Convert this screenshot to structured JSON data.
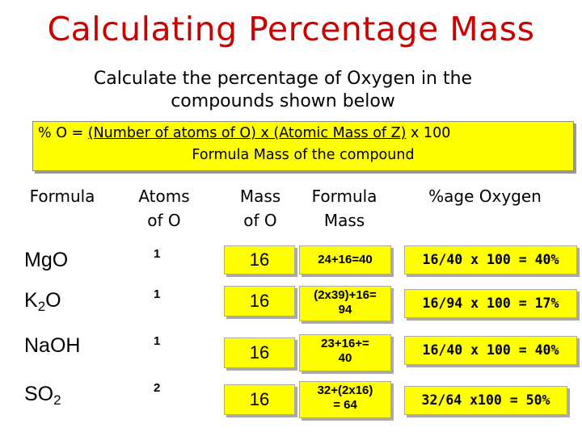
{
  "title": "Calculating Percentage Mass",
  "subtitle_line1": "Calculate the percentage of Oxygen in the",
  "subtitle_line2": "compounds shown below",
  "formula": {
    "prefix": "% O = ",
    "numerator": "(Number of atoms of O) x (Atomic Mass of Z)",
    "suffix": " x 100",
    "denominator": "Formula Mass of the compound"
  },
  "headers": {
    "formula": "Formula",
    "atoms_line1": "Atoms",
    "atoms_line2": "of O",
    "mass_line1": "Mass",
    "mass_line2": "of O",
    "fmass_line1": "Formula",
    "fmass_line2": "Mass",
    "pct": "%age Oxygen"
  },
  "rows": [
    {
      "compound_base": "MgO",
      "compound_sub": "",
      "compound_tail": "",
      "atoms": "1",
      "mass": "16",
      "fmass_line1": "24+16=40",
      "fmass_line2": "",
      "pct": "16/40 x 100 = 40%"
    },
    {
      "compound_base": "K",
      "compound_sub": "2",
      "compound_tail": "O",
      "atoms": "1",
      "mass": "16",
      "fmass_line1": "(2x39)+16=",
      "fmass_line2": "94",
      "pct": "16/94 x 100 = 17%"
    },
    {
      "compound_base": "NaOH",
      "compound_sub": "",
      "compound_tail": "",
      "atoms": "1",
      "mass": "16",
      "fmass_line1": "23+16+=",
      "fmass_line2": "40",
      "pct": "16/40 x 100 = 40%"
    },
    {
      "compound_base": "SO",
      "compound_sub": "2",
      "compound_tail": "",
      "atoms": "2",
      "mass": "16",
      "fmass_line1": "32+(2x16)",
      "fmass_line2": "= 64",
      "pct": "32/64 x100 = 50%"
    }
  ],
  "colors": {
    "title": "#cc0000",
    "highlight": "#ffff00"
  }
}
